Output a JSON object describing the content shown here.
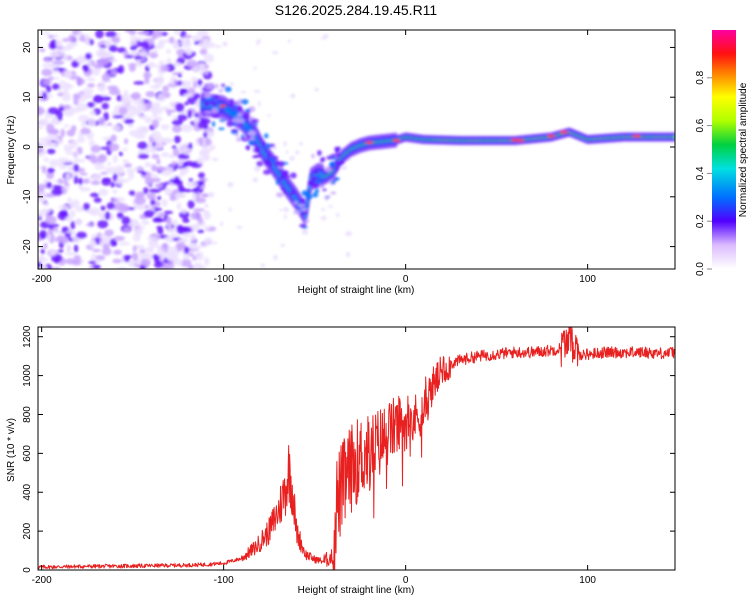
{
  "title": "S126.2025.284.19.45.R11",
  "chart_data": [
    {
      "type": "heatmap",
      "xlabel": "Height of straight line (km)",
      "ylabel": "Frequency (Hz)",
      "xlim": [
        -202,
        148
      ],
      "ylim": [
        -24.5,
        23.5
      ],
      "xticks": [
        -200,
        -100,
        0,
        100
      ],
      "xtick_labels": [
        "-200",
        "-100",
        "0",
        "100"
      ],
      "yticks": [
        -20,
        -10,
        0,
        10,
        20
      ],
      "ytick_labels": [
        "-20",
        "-10",
        "0",
        "10",
        "20"
      ],
      "ridge": {
        "x": [
          -110,
          -100,
          -90,
          -83,
          -78,
          -72,
          -66,
          -60,
          -55,
          -52,
          -48,
          -44,
          -40,
          -35,
          -30,
          -25,
          -20,
          -15,
          -10,
          -5,
          0,
          10,
          30,
          60,
          80,
          90,
          100,
          120,
          148
        ],
        "y": [
          8.5,
          8,
          5.5,
          2.5,
          -1,
          -4,
          -7.5,
          -10.5,
          -13.5,
          -6.5,
          -5.5,
          -6,
          -5,
          -2,
          -0.5,
          0.3,
          0.8,
          1,
          1.2,
          1.4,
          2,
          1.5,
          1.3,
          1.3,
          2,
          3,
          1.5,
          2,
          2
        ]
      },
      "colorbar": {
        "label": "Normalized spectral amplitude",
        "min": 0,
        "max": 1,
        "ticks": [
          0.0,
          0.2,
          0.4,
          0.6,
          0.8
        ],
        "tick_labels": [
          "0.0",
          "0.2",
          "0.4",
          "0.6",
          "0.8"
        ]
      }
    },
    {
      "type": "line",
      "xlabel": "Height of straight line (km)",
      "ylabel": "SNR (10 * v/v)",
      "xlim": [
        -202,
        148
      ],
      "ylim": [
        0,
        1250
      ],
      "xticks": [
        -200,
        -100,
        0,
        100
      ],
      "xtick_labels": [
        "-200",
        "-100",
        "0",
        "100"
      ],
      "yticks": [
        0,
        200,
        400,
        600,
        800,
        1000,
        1200
      ],
      "ytick_labels": [
        "0",
        "200",
        "400",
        "600",
        "800",
        "1000",
        "1200"
      ],
      "color": "#e8201f",
      "series": [
        {
          "name": "SNR",
          "x": [
            -202,
            -180,
            -160,
            -140,
            -120,
            -110,
            -100,
            -90,
            -82,
            -75,
            -70,
            -66,
            -64,
            -62,
            -60,
            -55,
            -50,
            -45,
            -40,
            -38,
            -35,
            -32,
            -30,
            -25,
            -20,
            -15,
            -10,
            -5,
            0,
            5,
            10,
            15,
            20,
            25,
            30,
            40,
            50,
            60,
            70,
            80,
            85,
            90,
            95,
            100,
            110,
            120,
            130,
            140,
            148
          ],
          "y": [
            15,
            18,
            20,
            22,
            25,
            28,
            35,
            60,
            120,
            200,
            300,
            420,
            520,
            400,
            200,
            80,
            55,
            45,
            70,
            350,
            420,
            480,
            520,
            580,
            600,
            650,
            700,
            740,
            760,
            780,
            820,
            950,
            1020,
            1060,
            1080,
            1100,
            1110,
            1120,
            1120,
            1130,
            1140,
            1200,
            1110,
            1110,
            1120,
            1120,
            1120,
            1115,
            1120
          ]
        }
      ]
    }
  ]
}
